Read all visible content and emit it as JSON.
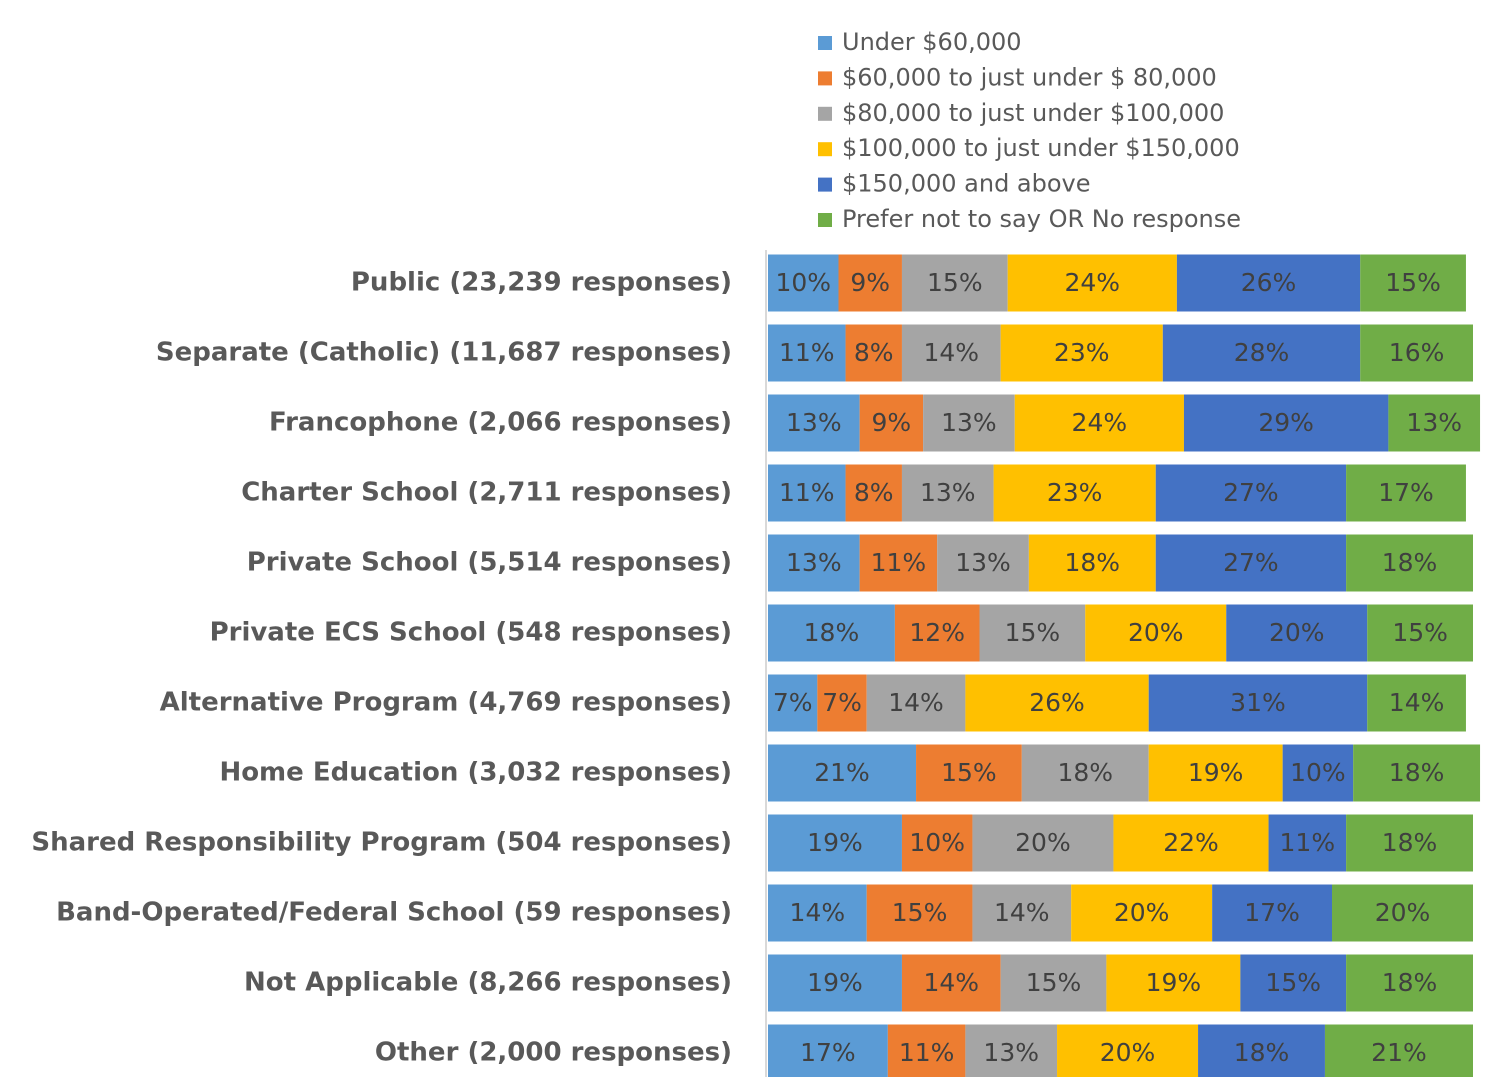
{
  "chart_data": {
    "type": "stacked_barh",
    "categories": [
      "Public (23,239 responses)",
      "Separate (Catholic) (11,687 responses)",
      "Francophone (2,066 responses)",
      "Charter School (2,711 responses)",
      "Private School (5,514 responses)",
      "Private ECS School (548 responses)",
      "Alternative Program (4,769 responses)",
      "Home Education (3,032 responses)",
      "Shared Responsibility Program (504 responses)",
      "Band-Operated/Federal School (59 responses)",
      "Not Applicable (8,266 responses)",
      "Other (2,000 responses)"
    ],
    "series": [
      {
        "name": "Under $60,000",
        "color": "#5b9bd5",
        "values": [
          10,
          11,
          13,
          11,
          13,
          18,
          7,
          21,
          19,
          14,
          19,
          17
        ],
        "value_labels": [
          "10%",
          "11%",
          "13%",
          "11%",
          "13%",
          "18%",
          "7%",
          "21%",
          "19%",
          "14%",
          "19%",
          "17%"
        ]
      },
      {
        "name": "$60,000 to just under $ 80,000",
        "color": "#ed7d31",
        "values": [
          9,
          8,
          9,
          8,
          11,
          12,
          7,
          15,
          10,
          15,
          14,
          11
        ],
        "value_labels": [
          "9%",
          "8%",
          "9%",
          "8%",
          "11%",
          "12%",
          "7%",
          "15%",
          "10%",
          "15%",
          "14%",
          "11%"
        ]
      },
      {
        "name": "$80,000 to just under $100,000",
        "color": "#a5a5a5",
        "values": [
          15,
          14,
          13,
          13,
          13,
          15,
          14,
          18,
          20,
          14,
          15,
          13
        ],
        "value_labels": [
          "15%",
          "14%",
          "13%",
          "13%",
          "13%",
          "15%",
          "14%",
          "18%",
          "20%",
          "14%",
          "15%",
          "13%"
        ]
      },
      {
        "name": "$100,000 to just under $150,000",
        "color": "#ffc000",
        "values": [
          24,
          23,
          24,
          23,
          18,
          20,
          26,
          19,
          22,
          20,
          19,
          20
        ],
        "value_labels": [
          "24%",
          "23%",
          "24%",
          "23%",
          "18%",
          "20%",
          "26%",
          "19%",
          "22%",
          "20%",
          "19%",
          "20%"
        ]
      },
      {
        "name": "$150,000 and above",
        "color": "#4472c4",
        "values": [
          26,
          28,
          29,
          27,
          27,
          20,
          31,
          10,
          11,
          17,
          15,
          18
        ],
        "value_labels": [
          "26%",
          "28%",
          "29%",
          "27%",
          "27%",
          "20%",
          "31%",
          "10%",
          "11%",
          "17%",
          "15%",
          "18%"
        ]
      },
      {
        "name": "Prefer not to say OR No response",
        "color": "#70ad47",
        "values": [
          15,
          16,
          13,
          17,
          18,
          15,
          14,
          18,
          18,
          20,
          18,
          21
        ],
        "value_labels": [
          "15%",
          "16%",
          "13%",
          "17%",
          "18%",
          "15%",
          "14%",
          "18%",
          "18%",
          "20%",
          "18%",
          "21%"
        ]
      }
    ]
  }
}
